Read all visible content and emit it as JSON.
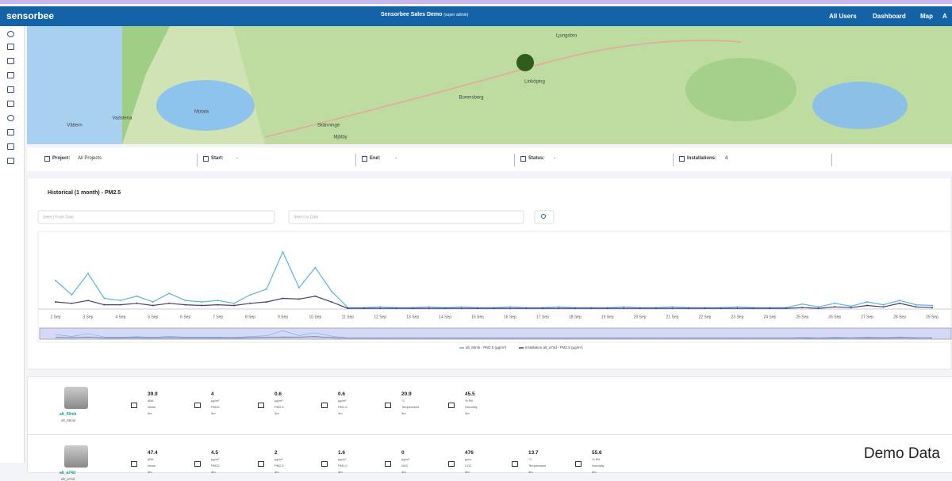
{
  "header": {
    "logo": "sensorbee",
    "title": "Sensorbee Sales Demo",
    "role": "(super admin)",
    "nav": [
      "All Users",
      "Dashboard",
      "Map",
      "A"
    ]
  },
  "map": {
    "labels": [
      "Linköping",
      "Motala",
      "Vadstena",
      "Skänninge",
      "Mjölby",
      "Borensberg",
      "Ljungsbro",
      "Vättern"
    ]
  },
  "filters": [
    {
      "label": "Project:",
      "value": "All Projects"
    },
    {
      "label": "Start:",
      "value": "-"
    },
    {
      "label": "End:",
      "value": "-"
    },
    {
      "label": "Status:",
      "value": "-"
    },
    {
      "label": "Installations:",
      "value": "4"
    }
  ],
  "panel": {
    "title": "Historical (1 month) - PM2.5",
    "from_placeholder": "Select From Date",
    "to_placeholder": "Select to Date"
  },
  "chart_data": {
    "type": "line",
    "categories": [
      "2 Sep",
      null,
      "3 Sep",
      null,
      "4 Sep",
      null,
      "5 Sep",
      null,
      "6 Sep",
      null,
      "7 Sep",
      null,
      "8 Sep",
      null,
      "9 Sep",
      null,
      "10 Sep",
      null,
      "11 Sep",
      null,
      "12 Sep",
      null,
      "13 Sep",
      null,
      "14 Sep",
      null,
      "15 Sep",
      null,
      "16 Sep",
      null,
      "17 Sep",
      null,
      "18 Sep",
      null,
      "19 Sep",
      null,
      "20 Sep",
      null,
      "21 Sep",
      null,
      "22 Sep",
      null,
      "23 Sep",
      null,
      "24 Sep",
      null,
      "25 Sep",
      null,
      "26 Sep",
      null,
      "27 Sep",
      null,
      "28 Sep",
      null,
      "29 Sep"
    ],
    "series": [
      {
        "name": "alt_65mk - PM2.5 (µg/m³)",
        "color": "#5ab4e5",
        "values": [
          40,
          20,
          50,
          15,
          12,
          18,
          10,
          22,
          12,
          10,
          12,
          8,
          20,
          28,
          80,
          30,
          58,
          25,
          2,
          2,
          3,
          2,
          2,
          3,
          2,
          3,
          2,
          2,
          3,
          2,
          2,
          3,
          2,
          2,
          2,
          3,
          2,
          2,
          3,
          2,
          2,
          2,
          3,
          2,
          2,
          2,
          7,
          3,
          8,
          4,
          10,
          6,
          12,
          6,
          5
        ]
      },
      {
        "name": "installation alt_a74d - PM2.5 (µg/m³)",
        "color": "#4b3f72",
        "values": [
          10,
          8,
          12,
          6,
          6,
          8,
          5,
          8,
          6,
          5,
          6,
          5,
          8,
          10,
          15,
          14,
          18,
          10,
          1,
          1,
          1,
          1,
          1,
          1,
          1,
          1,
          1,
          1,
          1,
          1,
          1,
          1,
          1,
          1,
          1,
          1,
          1,
          1,
          1,
          1,
          1,
          1,
          1,
          1,
          1,
          1,
          2,
          1,
          3,
          2,
          5,
          3,
          8,
          3,
          2
        ]
      }
    ],
    "ylim": [
      0,
      100
    ]
  },
  "devices": [
    {
      "name": "alt_65mk",
      "id": "alt_65mk",
      "readings": [
        {
          "value": "39.9",
          "unit": "dBA",
          "label": "Noise",
          "age": "3m"
        },
        {
          "value": "4",
          "unit": "µg/m³",
          "label": "PM10",
          "age": "3m"
        },
        {
          "value": "0.6",
          "unit": "µg/m³",
          "label": "PM2.5",
          "age": "3m"
        },
        {
          "value": "0.6",
          "unit": "µg/m³",
          "label": "PM1.0",
          "age": "3m"
        },
        {
          "value": "20.9",
          "unit": "°C",
          "label": "Temperature",
          "age": "3m"
        },
        {
          "value": "45.5",
          "unit": "% RH",
          "label": "Humidity",
          "age": "3m"
        }
      ]
    },
    {
      "name": "alt_a74d",
      "id": "alt_a74d",
      "readings": [
        {
          "value": "47.4",
          "unit": "dBA",
          "label": "Noise",
          "age": "3m"
        },
        {
          "value": "4.5",
          "unit": "µg/m³",
          "label": "PM10",
          "age": "3m"
        },
        {
          "value": "2",
          "unit": "µg/m³",
          "label": "PM2.5",
          "age": "3m"
        },
        {
          "value": "1.6",
          "unit": "µg/m³",
          "label": "PM1.0",
          "age": "3m"
        },
        {
          "value": "0",
          "unit": "µg/m³",
          "label": "NO2",
          "age": "3m"
        },
        {
          "value": "476",
          "unit": "ppm",
          "label": "CO2",
          "age": "3m"
        },
        {
          "value": "13.7",
          "unit": "°C",
          "label": "Temperature",
          "age": "3m"
        },
        {
          "value": "55.6",
          "unit": "% RH",
          "label": "Humidity",
          "age": "3m"
        }
      ]
    }
  ],
  "watermark": "Demo Data"
}
